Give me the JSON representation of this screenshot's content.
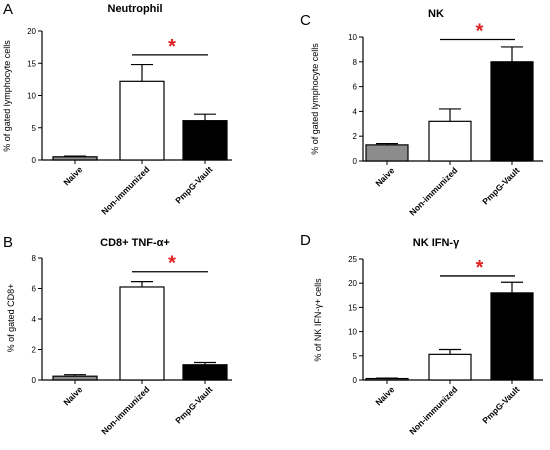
{
  "chart_data": [
    {
      "type": "bar",
      "panel": "A",
      "title": "Neutrophil",
      "ylabel": "% of gated lymphocyte cells",
      "xlabel": "",
      "categories": [
        "Naive",
        "Non-immunized",
        "PmpG-Vault"
      ],
      "values": [
        0.5,
        12.2,
        6.1
      ],
      "errors": [
        0.1,
        2.6,
        1.0
      ],
      "colors": [
        "#8c8c8c",
        "#ffffff",
        "#000000"
      ],
      "ylim": [
        0,
        20
      ],
      "yticks": [
        0,
        5,
        10,
        15,
        20
      ],
      "significance": {
        "symbol": "*",
        "from": 1,
        "to": 2,
        "level": 16.3
      },
      "grid": false
    },
    {
      "type": "bar",
      "panel": "B",
      "title": "CD8+ TNF-α+",
      "ylabel": "% of gated CD8+",
      "xlabel": "",
      "categories": [
        "Naive",
        "Non-immunized",
        "PmpG-Vault"
      ],
      "values": [
        0.25,
        6.1,
        1.0
      ],
      "errors": [
        0.1,
        0.35,
        0.15
      ],
      "colors": [
        "#8c8c8c",
        "#ffffff",
        "#000000"
      ],
      "ylim": [
        0,
        8
      ],
      "yticks": [
        0,
        2,
        4,
        6,
        8
      ],
      "significance": {
        "symbol": "*",
        "from": 1,
        "to": 2,
        "level": 7.1
      },
      "grid": false
    },
    {
      "type": "bar",
      "panel": "C",
      "title": "NK",
      "ylabel": "% of gated lymphocyte cells",
      "xlabel": "",
      "categories": [
        "Naive",
        "Non-immunized",
        "PmpG-Vault"
      ],
      "values": [
        1.3,
        3.2,
        8.0
      ],
      "errors": [
        0.1,
        1.0,
        1.2
      ],
      "colors": [
        "#8c8c8c",
        "#ffffff",
        "#000000"
      ],
      "ylim": [
        0,
        10
      ],
      "yticks": [
        0,
        2,
        4,
        6,
        8,
        10
      ],
      "significance": {
        "symbol": "*",
        "from": 1,
        "to": 2,
        "level": 9.8
      },
      "grid": false
    },
    {
      "type": "bar",
      "panel": "D",
      "title": "NK IFN-γ",
      "ylabel": "% of NK IFN-γ+ cells",
      "xlabel": "",
      "categories": [
        "Naive",
        "Non-immunized",
        "PmpG-Vault"
      ],
      "values": [
        0.3,
        5.3,
        18.0
      ],
      "errors": [
        0.1,
        1.0,
        2.2
      ],
      "colors": [
        "#8c8c8c",
        "#ffffff",
        "#000000"
      ],
      "ylim": [
        0,
        25
      ],
      "yticks": [
        0,
        5,
        10,
        15,
        20,
        25
      ],
      "significance": {
        "symbol": "*",
        "from": 1,
        "to": 2,
        "level": 21.5
      },
      "grid": false
    }
  ]
}
